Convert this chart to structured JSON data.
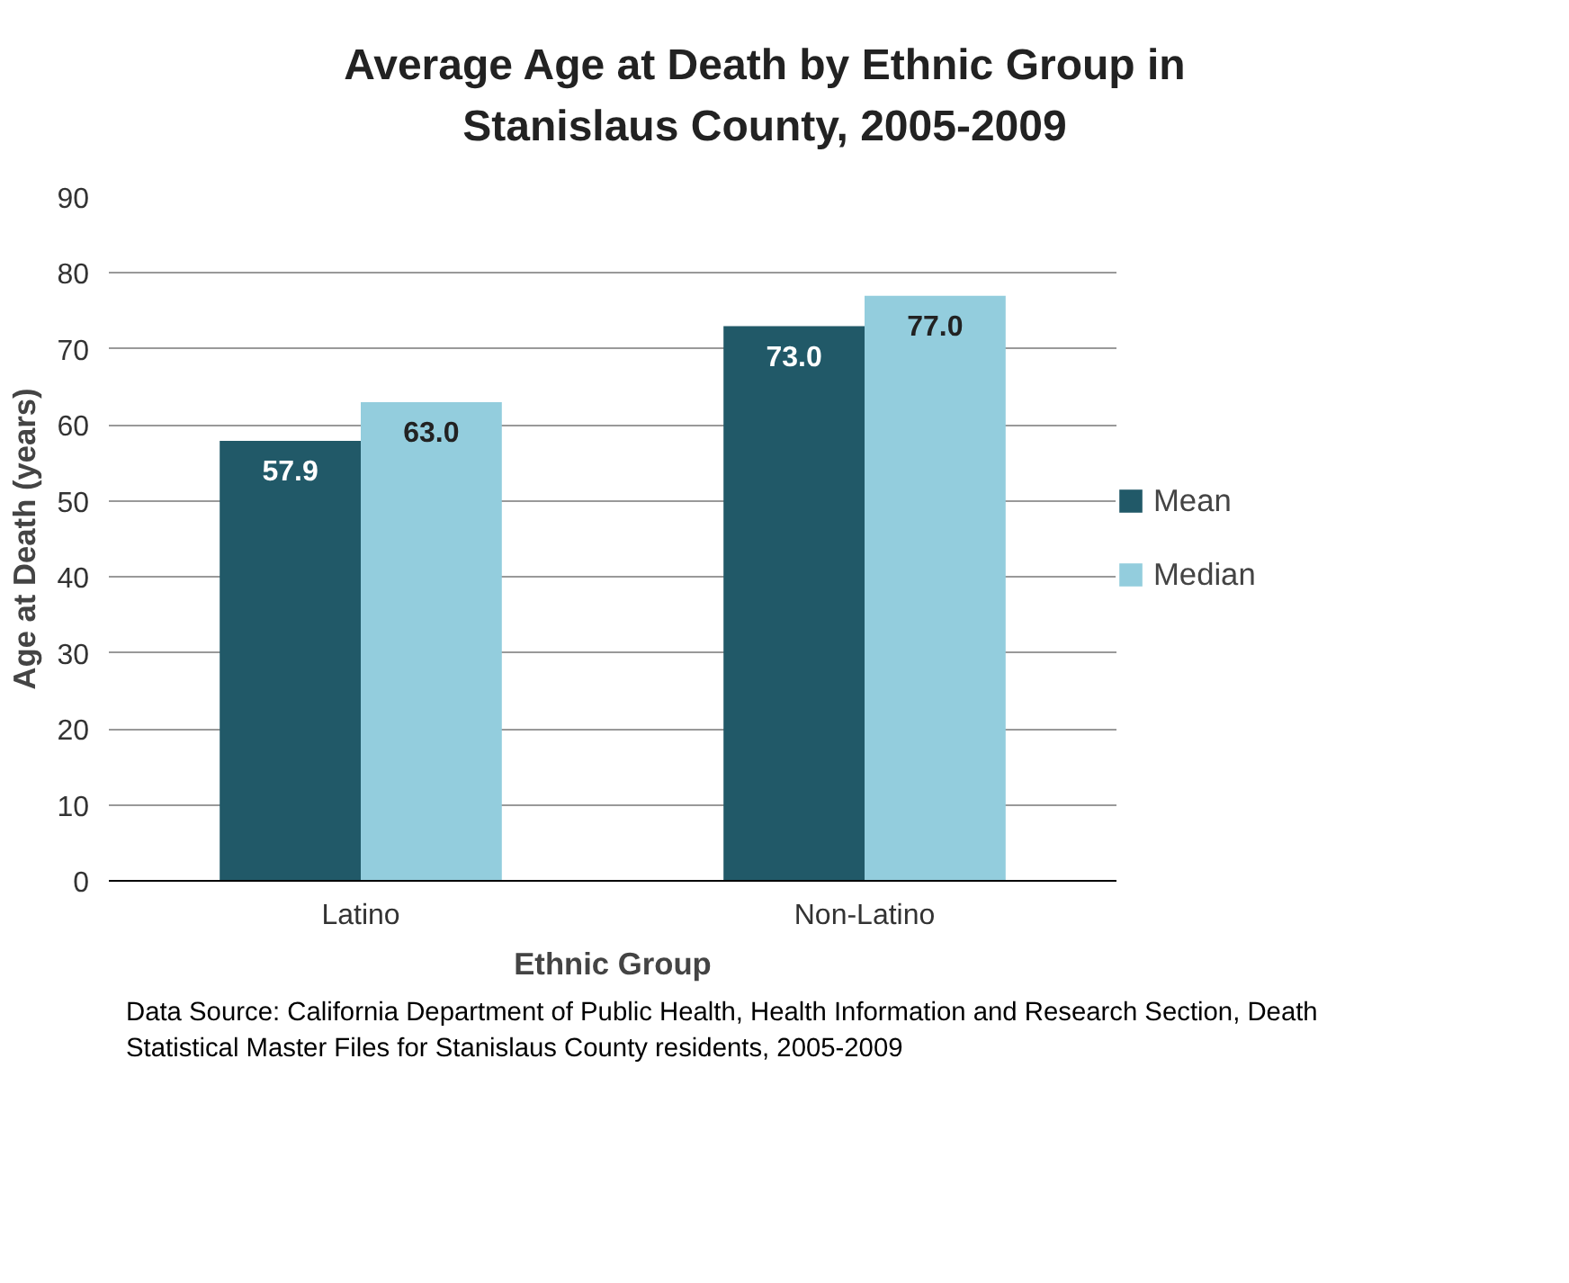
{
  "chart_data": {
    "type": "bar",
    "title": "Average Age at Death by Ethnic Group in Stanislaus County, 2005-2009",
    "xlabel": "Ethnic Group",
    "ylabel": "Age at Death (years)",
    "categories": [
      "Latino",
      "Non-Latino"
    ],
    "series": [
      {
        "name": "Mean",
        "color": "#215968",
        "values": [
          57.9,
          73.0
        ],
        "value_labels": [
          "57.9",
          "73.0"
        ]
      },
      {
        "name": "Median",
        "color": "#93cddd",
        "values": [
          63.0,
          77.0
        ],
        "value_labels": [
          "63.0",
          "77.0"
        ]
      }
    ],
    "ylim": [
      0,
      90
    ],
    "yticks": [
      0,
      10,
      20,
      30,
      40,
      50,
      60,
      70,
      80,
      90
    ],
    "grid": "y",
    "legend": "right",
    "annotations": [
      "Data Source: California Department of Public Health, Health Information and Research Section, Death Statistical Master Files for Stanislaus County residents, 2005-2009"
    ]
  }
}
